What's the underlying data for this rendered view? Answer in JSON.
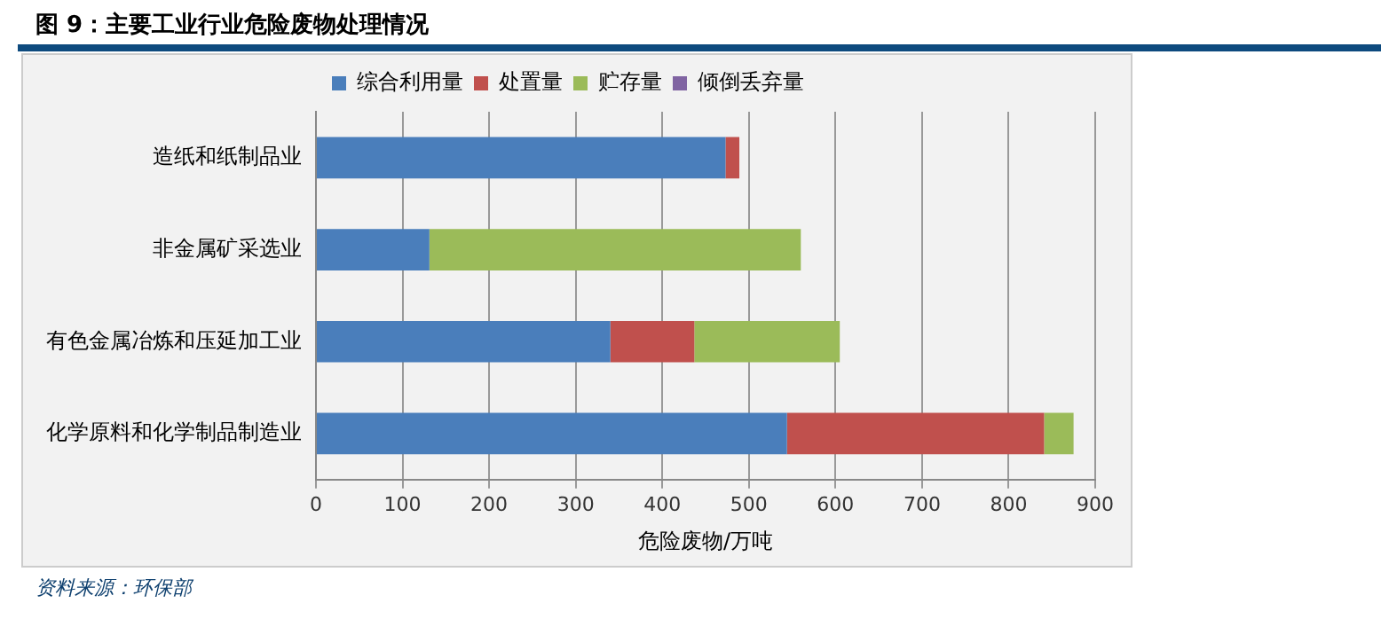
{
  "chart_data": {
    "type": "bar",
    "title": "图 9：主要工业行业危险废物处理情况",
    "xlabel": "危险废物/万吨",
    "orientation": "horizontal",
    "stacked": true,
    "categories": [
      "造纸和纸制品业",
      "非金属矿采选业",
      "有色金属冶炼和压延加工业",
      "化学原料和化学制品制造业"
    ],
    "series": [
      {
        "name": "综合利用量",
        "color": "#4a7ebb",
        "values": [
          473,
          131,
          340,
          544
        ]
      },
      {
        "name": "处置量",
        "color": "#c0504d",
        "values": [
          16,
          0,
          97,
          297
        ]
      },
      {
        "name": "贮存量",
        "color": "#9bbb59",
        "values": [
          0,
          429,
          168,
          34
        ]
      },
      {
        "name": "倾倒丢弃量",
        "color": "#8064a2",
        "values": [
          0,
          0,
          0,
          0
        ]
      }
    ],
    "xlim": [
      0,
      900
    ],
    "xticks": [
      0,
      100,
      200,
      300,
      400,
      500,
      600,
      700,
      800,
      900
    ],
    "grid": "x",
    "legend": "top",
    "annotations": [
      "资料来源：环保部"
    ]
  }
}
